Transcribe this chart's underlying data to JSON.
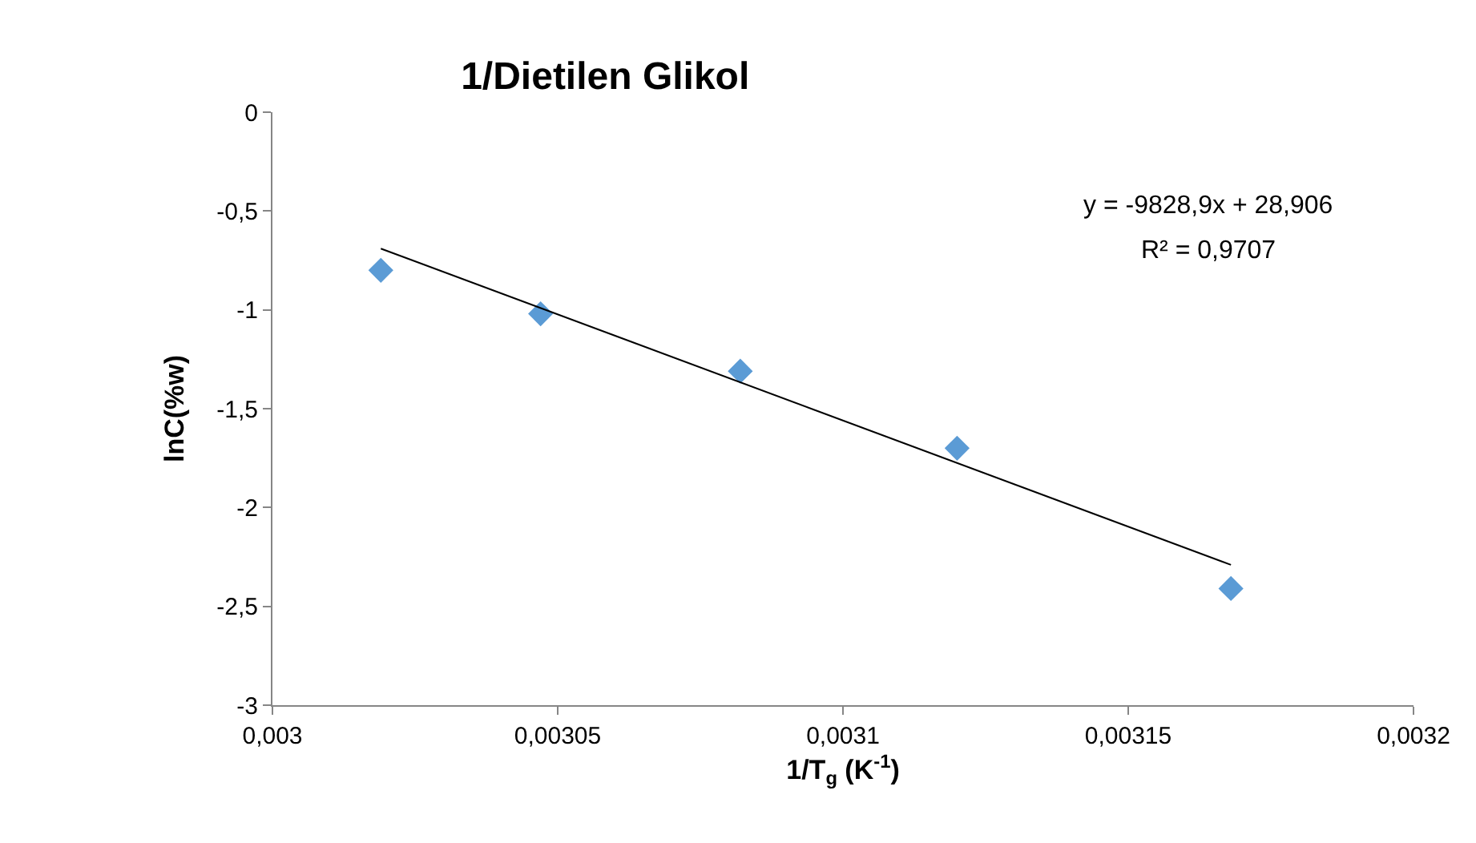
{
  "chart_data": {
    "type": "scatter",
    "title": "1/Dietilen Glikol",
    "xlabel": "1/T$_{g}$ (K$^{-1}$)",
    "ylabel": "lnC(%w)",
    "x": [
      0.003019,
      0.003047,
      0.003082,
      0.00312,
      0.003168
    ],
    "series": [
      {
        "color": "#5b9bd5",
        "marker": "diamond",
        "values": [
          -0.8,
          -1.02,
          -1.31,
          -1.7,
          -2.41
        ]
      },
      {
        "type": "line",
        "color": "#000000",
        "x": [
          0.003019,
          0.003168
        ],
        "values": [
          -0.69,
          -2.29
        ],
        "marker": "none",
        "line_style": "solid"
      }
    ],
    "xlim": [
      0.003,
      0.0032
    ],
    "xticks": [
      {
        "value": 0.003,
        "label": "0,003"
      },
      {
        "value": 0.00305,
        "label": "0,00305"
      },
      {
        "value": 0.0031,
        "label": "0,0031"
      },
      {
        "value": 0.00315,
        "label": "0,00315"
      },
      {
        "value": 0.0032,
        "label": "0,0032"
      }
    ],
    "ylim": [
      -3,
      0
    ],
    "yticks": [
      {
        "value": 0,
        "label": "0"
      },
      {
        "value": -0.5,
        "label": "-0,5"
      },
      {
        "value": -1,
        "label": "-1"
      },
      {
        "value": -1.5,
        "label": "-1,5"
      },
      {
        "value": -2,
        "label": "-2"
      },
      {
        "value": -2.5,
        "label": "-2,5"
      },
      {
        "value": -3,
        "label": "-3"
      }
    ],
    "annotations": [
      "y = -9828,9x + 28,906",
      "R² = 0,9707"
    ],
    "legend": false
  }
}
